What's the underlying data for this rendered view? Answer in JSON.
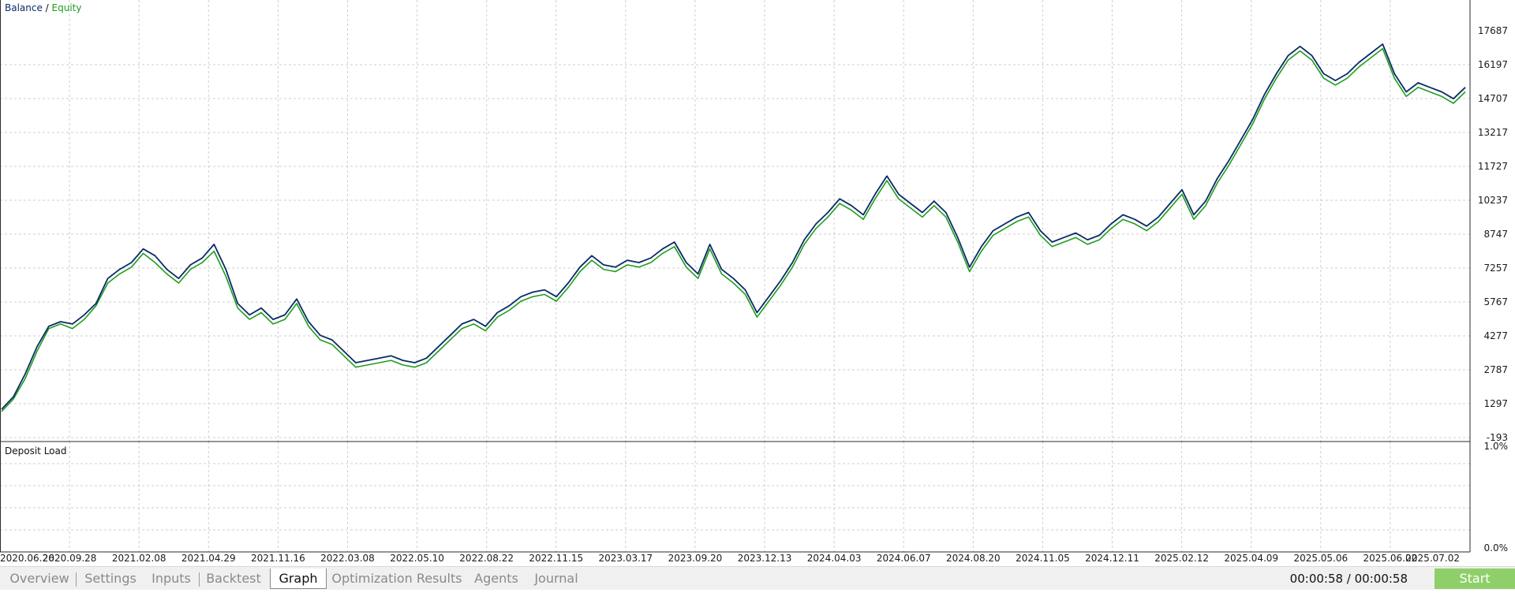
{
  "colors": {
    "balance": "#0b2a66",
    "equity": "#1e9e1e",
    "grid": "#cfcfcf",
    "start_button": "#8fcf6a",
    "tab_inactive": "#8a8a8a"
  },
  "chart_data": [
    {
      "type": "line",
      "title": "",
      "legend": {
        "placement": "top-left",
        "items": [
          "Balance",
          "Equity"
        ],
        "separator": "/"
      },
      "grid": true,
      "ylim": [
        -193,
        17687
      ],
      "y_ticks": [
        "17687",
        "16197",
        "14707",
        "13217",
        "11727",
        "10237",
        "8747",
        "7257",
        "5767",
        "4277",
        "2787",
        "1297",
        "-193"
      ],
      "x_ticks": [
        "2020.06.26",
        "2020.09.28",
        "2021.02.08",
        "2021.04.29",
        "2021.11.16",
        "2022.03.08",
        "2022.05.10",
        "2022.08.22",
        "2022.11.15",
        "2023.03.17",
        "2023.09.20",
        "2023.12.13",
        "2024.04.03",
        "2024.06.07",
        "2024.08.20",
        "2024.11.05",
        "2024.12.11",
        "2025.02.12",
        "2025.04.09",
        "2025.05.06",
        "2025.06.02",
        "2025.07.02"
      ],
      "series": [
        {
          "name": "Balance",
          "values": [
            1050,
            1600,
            2600,
            3800,
            4700,
            4900,
            4800,
            5200,
            5700,
            6800,
            7200,
            7500,
            8100,
            7800,
            7200,
            6800,
            7400,
            7700,
            8300,
            7200,
            5700,
            5200,
            5500,
            5000,
            5200,
            5900,
            4900,
            4300,
            4100,
            3600,
            3100,
            3200,
            3300,
            3400,
            3200,
            3100,
            3300,
            3800,
            4300,
            4800,
            5000,
            4700,
            5300,
            5600,
            6000,
            6200,
            6300,
            6000,
            6600,
            7300,
            7800,
            7400,
            7300,
            7600,
            7500,
            7700,
            8100,
            8400,
            7500,
            7000,
            8300,
            7200,
            6800,
            6300,
            5300,
            6000,
            6700,
            7500,
            8500,
            9200,
            9700,
            10300,
            10000,
            9600,
            10500,
            11300,
            10500,
            10100,
            9700,
            10200,
            9700,
            8600,
            7300,
            8200,
            8900,
            9200,
            9500,
            9700,
            8900,
            8400,
            8600,
            8800,
            8500,
            8700,
            9200,
            9600,
            9400,
            9100,
            9500,
            10100,
            10700,
            9600,
            10200,
            11200,
            12000,
            12900,
            13800,
            14900,
            15800,
            16600,
            17000,
            16600,
            15800,
            15500,
            15800,
            16300,
            16700,
            17100,
            15800,
            15000,
            15400,
            15200,
            15000,
            14700,
            15200
          ]
        },
        {
          "name": "Equity",
          "values": [
            950,
            1500,
            2400,
            3600,
            4600,
            4800,
            4600,
            5000,
            5600,
            6600,
            7000,
            7300,
            7900,
            7500,
            7000,
            6600,
            7200,
            7500,
            8000,
            6900,
            5500,
            5000,
            5300,
            4800,
            5000,
            5700,
            4700,
            4100,
            3900,
            3400,
            2900,
            3000,
            3100,
            3200,
            3000,
            2900,
            3100,
            3600,
            4100,
            4600,
            4800,
            4500,
            5100,
            5400,
            5800,
            6000,
            6100,
            5800,
            6400,
            7100,
            7600,
            7200,
            7100,
            7400,
            7300,
            7500,
            7900,
            8200,
            7300,
            6800,
            8100,
            7000,
            6600,
            6100,
            5100,
            5800,
            6500,
            7300,
            8300,
            9000,
            9500,
            10100,
            9800,
            9400,
            10300,
            11100,
            10300,
            9900,
            9500,
            10000,
            9500,
            8400,
            7100,
            8000,
            8700,
            9000,
            9300,
            9500,
            8700,
            8200,
            8400,
            8600,
            8300,
            8500,
            9000,
            9400,
            9200,
            8900,
            9300,
            9900,
            10500,
            9400,
            10000,
            11000,
            11800,
            12700,
            13600,
            14700,
            15600,
            16400,
            16800,
            16400,
            15600,
            15300,
            15600,
            16100,
            16500,
            16900,
            15600,
            14800,
            15200,
            15000,
            14800,
            14500,
            15000
          ]
        }
      ]
    },
    {
      "type": "area",
      "title": "Deposit Load",
      "ylim": [
        0,
        1.0
      ],
      "y_ticks": [
        "1.0%",
        "0.0%"
      ],
      "grid": true,
      "series": [
        {
          "values": []
        }
      ]
    }
  ],
  "tabs": [
    {
      "label": "Overview",
      "active": false
    },
    {
      "label": "Settings",
      "active": false
    },
    {
      "label": "Inputs",
      "active": false
    },
    {
      "label": "Backtest",
      "active": false
    },
    {
      "label": "Graph",
      "active": true
    },
    {
      "label": "Optimization Results",
      "active": false
    },
    {
      "label": "Agents",
      "active": false
    },
    {
      "label": "Journal",
      "active": false
    }
  ],
  "status": {
    "timer": "00:00:58 / 00:00:58",
    "start_label": "Start"
  }
}
